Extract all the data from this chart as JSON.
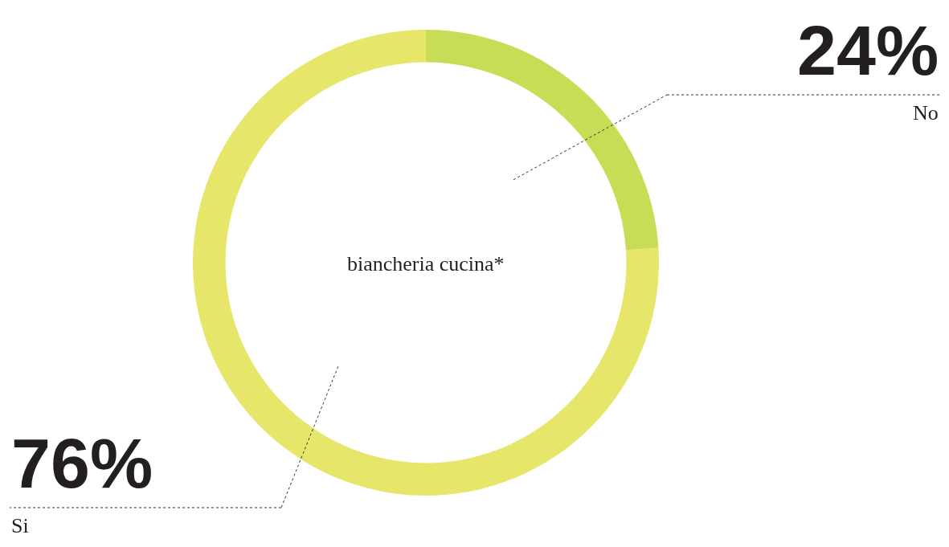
{
  "chart_data": {
    "type": "donut",
    "categories": [
      "No",
      "Si"
    ],
    "values": [
      24,
      76
    ],
    "colors": [
      "#c8dc56",
      "#e5e66a"
    ],
    "value_labels": [
      "24%",
      "76%"
    ],
    "annotations": [
      "biancheria cucina*"
    ],
    "legend": false
  }
}
